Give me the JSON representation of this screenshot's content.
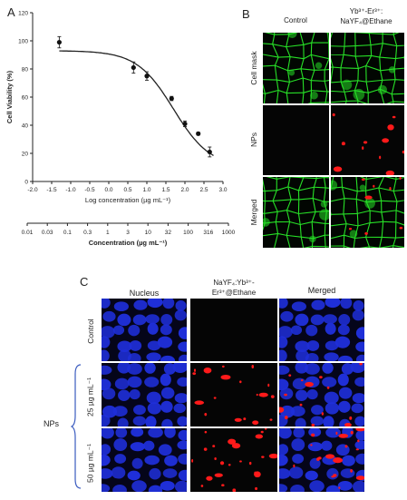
{
  "panels": {
    "a": "A",
    "b": "B",
    "c": "C"
  },
  "chart_data": [
    {
      "type": "scatter",
      "title": "",
      "ylabel": "Cell Viability (%)",
      "xlabel": "Log concentration (µg mL⁻¹)",
      "xlim": [
        -2.0,
        3.0
      ],
      "ylim": [
        0,
        120
      ],
      "grid": false,
      "x_ticks": [
        "-2.0",
        "-1.5",
        "-1.0",
        "-0.5",
        "0.0",
        "0.5",
        "1.0",
        "1.5",
        "2.0",
        "2.5",
        "3.0"
      ],
      "y_ticks": [
        "0",
        "20",
        "40",
        "60",
        "80",
        "100",
        "120"
      ],
      "series": [
        {
          "x": [
            -1.3,
            0.65,
            1.0,
            1.65,
            2.0,
            2.35,
            2.65
          ],
          "y": [
            99,
            81,
            75,
            59,
            41,
            34,
            21
          ],
          "err": [
            4,
            4,
            3,
            1.5,
            2,
            1,
            3.5
          ]
        }
      ],
      "fit_curve": {
        "type": "sigmoidal",
        "top": 93,
        "bottom": 10,
        "log_ec50": 1.7,
        "hill": -0.9
      },
      "secondary_axis": {
        "xlabel": "Concentration (µg mL⁻¹)",
        "ticks": [
          "0.01",
          "0.03",
          "0.1",
          "0.3",
          "1",
          "3",
          "10",
          "32",
          "100",
          "316",
          "1000"
        ]
      }
    }
  ],
  "panel_b": {
    "columns": [
      "Control",
      "Yb³⁺-Er³⁺:",
      "NaYF₄@Ethane"
    ],
    "rows": [
      "Cell mask",
      "NPs",
      "Merged"
    ]
  },
  "panel_c": {
    "columns": [
      "Nucleus",
      "NaYF₄:Yb³⁺-",
      "Er³⁺@Ethane",
      "Merged"
    ],
    "rows": [
      "Control",
      "25 µg mL⁻¹",
      "50 µg mL⁻¹"
    ],
    "group_label": "NPs"
  },
  "colors": {
    "membrane": "#27e027",
    "nucleus": "#1f2fd9",
    "particles": "#ff1a1a",
    "dark": "#050505"
  }
}
